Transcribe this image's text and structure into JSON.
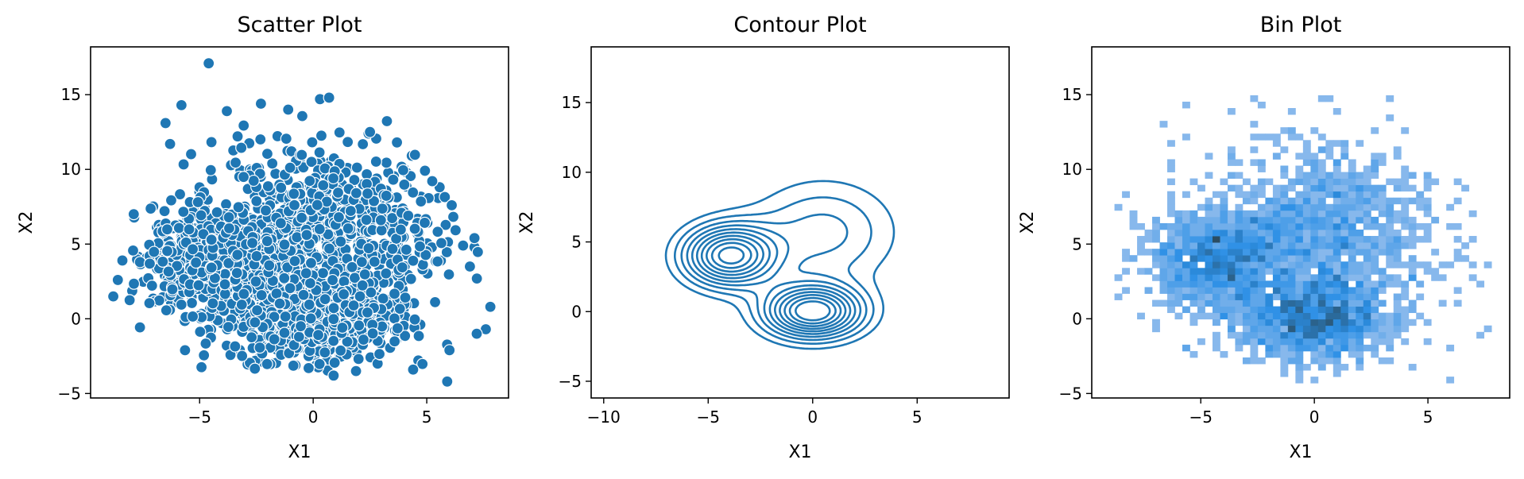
{
  "chart_data": [
    {
      "type": "scatter",
      "title": "Scatter Plot",
      "xlabel": "X1",
      "ylabel": "X2",
      "xlim": [
        -9.8,
        8.6
      ],
      "ylim": [
        -5.3,
        18.2
      ],
      "xticks": [
        -5,
        0,
        5
      ],
      "yticks": [
        -5,
        0,
        5,
        10,
        15
      ],
      "color": "#1f77b4",
      "clusters": [
        {
          "center": [
            -4.0,
            4.0
          ],
          "spread": [
            1.6,
            1.8
          ]
        },
        {
          "center": [
            0.0,
            0.0
          ],
          "spread": [
            1.7,
            1.4
          ]
        },
        {
          "center": [
            0.5,
            5.7
          ],
          "spread": [
            2.4,
            2.9
          ]
        }
      ],
      "outliers": [
        {
          "x": -4.6,
          "y": 17.1
        },
        {
          "x": -6.5,
          "y": 13.1
        },
        {
          "x": -5.8,
          "y": 14.3
        },
        {
          "x": -6.3,
          "y": 11.7
        },
        {
          "x": -8.6,
          "y": 2.6
        },
        {
          "x": -8.8,
          "y": 1.5
        },
        {
          "x": -8.4,
          "y": 3.9
        },
        {
          "x": -7.9,
          "y": 7.0
        },
        {
          "x": 5.9,
          "y": -4.2
        },
        {
          "x": 4.4,
          "y": -3.4
        },
        {
          "x": 7.6,
          "y": -0.7
        },
        {
          "x": 7.2,
          "y": -1.0
        },
        {
          "x": 7.8,
          "y": 0.8
        },
        {
          "x": 7.1,
          "y": 5.4
        },
        {
          "x": 6.6,
          "y": 4.9
        },
        {
          "x": 6.0,
          "y": -2.1
        },
        {
          "x": 0.3,
          "y": 14.7
        },
        {
          "x": -2.3,
          "y": 14.4
        },
        {
          "x": -1.1,
          "y": 14.0
        },
        {
          "x": 2.5,
          "y": 12.5
        },
        {
          "x": 0.7,
          "y": 14.8
        },
        {
          "x": -3.8,
          "y": 13.9
        },
        {
          "x": 0.9,
          "y": -3.8
        },
        {
          "x": -0.2,
          "y": -3.3
        },
        {
          "x": 6.9,
          "y": 3.5
        },
        {
          "x": 6.1,
          "y": 7.6
        }
      ]
    },
    {
      "type": "contour",
      "title": "Contour Plot",
      "xlabel": "X1",
      "ylabel": "X2",
      "xlim": [
        -10.6,
        9.4
      ],
      "ylim": [
        -6.2,
        19.0
      ],
      "xticks": [
        -10,
        -5,
        0,
        5
      ],
      "yticks": [
        -5,
        0,
        5,
        10,
        15
      ],
      "color": "#1f77b4",
      "levels": 10,
      "peaks": [
        {
          "center": [
            -4.0,
            4.0
          ],
          "spread": [
            1.5,
            1.5
          ],
          "weight": 1.0
        },
        {
          "center": [
            0.0,
            0.0
          ],
          "spread": [
            1.6,
            1.3
          ],
          "weight": 1.0
        },
        {
          "center": [
            0.5,
            5.7
          ],
          "spread": [
            2.4,
            2.6
          ],
          "weight": 1.0
        }
      ]
    },
    {
      "type": "heatmap",
      "title": "Bin Plot",
      "xlabel": "X1",
      "ylabel": "X2",
      "xlim": [
        -9.8,
        8.6
      ],
      "ylim": [
        -5.3,
        18.2
      ],
      "xticks": [
        -5,
        0,
        5
      ],
      "yticks": [
        -5,
        0,
        5,
        10,
        15
      ],
      "bin_x": [
        -8.8,
        7.8
      ],
      "bin_y": [
        -4.3,
        17.1
      ],
      "bins": [
        50,
        50
      ],
      "color_low": "#a9c7ee",
      "color_mid": "#2b8fe6",
      "color_high": "#2b4d62"
    }
  ]
}
